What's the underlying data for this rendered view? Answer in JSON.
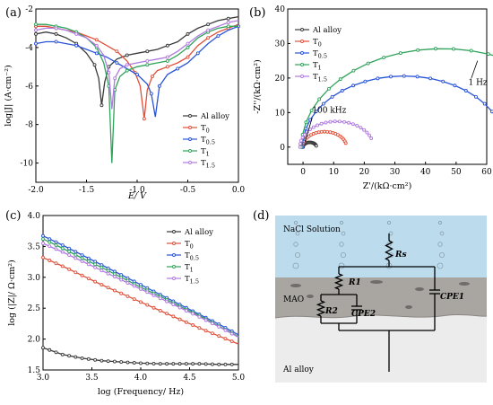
{
  "colors": {
    "Al alloy": "#3a3a3a",
    "T0": "#e0503a",
    "T0.5": "#2a54d8",
    "T1": "#2fa35a",
    "T1.5": "#b07ae0"
  },
  "legend_labels": {
    "Al alloy": "Al alloy",
    "T0": "T",
    "T0_sub": "0",
    "T0.5": "T",
    "T0.5_sub": "0.5",
    "T1": "T",
    "T1_sub": "1",
    "T1.5": "T",
    "T1.5_sub": "1.5"
  },
  "chart_data": [
    {
      "panel": "(a)",
      "type": "line",
      "xlabel": "E/ V",
      "ylabel": "log|J| (A·cm⁻²)",
      "xlim": [
        -2.0,
        0.0
      ],
      "ylim": [
        -11,
        -2
      ],
      "xticks": [
        -2.0,
        -1.5,
        -1.0,
        -0.5,
        0.0
      ],
      "xtick_labels": [
        "-2.0",
        "-1.5",
        "-1.0",
        "-0.5",
        "0.0"
      ],
      "yticks": [
        -10,
        -8,
        -6,
        -4,
        -2
      ],
      "ytick_labels": [
        "-10",
        "-8",
        "-6",
        "-4",
        "-2"
      ],
      "legend_position": "right",
      "series": [
        {
          "name": "Al alloy",
          "ecorr": -1.35,
          "jcorr": -7.0,
          "x": [
            -2.0,
            -1.9,
            -1.8,
            -1.7,
            -1.6,
            -1.5,
            -1.42,
            -1.38,
            -1.35,
            -1.32,
            -1.28,
            -1.2,
            -1.1,
            -1.0,
            -0.9,
            -0.8,
            -0.7,
            -0.6,
            -0.5,
            -0.4,
            -0.3,
            -0.2,
            -0.1,
            0.0
          ],
          "y": [
            -3.3,
            -3.2,
            -3.3,
            -3.5,
            -3.8,
            -4.3,
            -4.9,
            -5.6,
            -7.0,
            -5.8,
            -5.0,
            -4.6,
            -4.4,
            -4.3,
            -4.2,
            -4.1,
            -3.9,
            -3.7,
            -3.3,
            -3.0,
            -2.8,
            -2.6,
            -2.5,
            -2.4
          ]
        },
        {
          "name": "T0",
          "ecorr": -0.93,
          "jcorr": -7.7,
          "x": [
            -2.0,
            -1.9,
            -1.8,
            -1.7,
            -1.6,
            -1.5,
            -1.4,
            -1.3,
            -1.2,
            -1.1,
            -1.02,
            -0.97,
            -0.93,
            -0.9,
            -0.85,
            -0.8,
            -0.7,
            -0.6,
            -0.5,
            -0.4,
            -0.3,
            -0.2,
            -0.1,
            0.0
          ],
          "y": [
            -2.9,
            -2.9,
            -3.0,
            -3.1,
            -3.2,
            -3.4,
            -3.6,
            -3.9,
            -4.2,
            -4.7,
            -5.3,
            -6.0,
            -7.7,
            -6.2,
            -5.5,
            -5.2,
            -5.0,
            -4.8,
            -4.5,
            -3.9,
            -3.5,
            -3.2,
            -3.0,
            -2.8
          ]
        },
        {
          "name": "T0.5",
          "ecorr": -0.82,
          "jcorr": -7.6,
          "x": [
            -2.0,
            -1.9,
            -1.8,
            -1.7,
            -1.6,
            -1.5,
            -1.4,
            -1.3,
            -1.2,
            -1.1,
            -1.0,
            -0.9,
            -0.86,
            -0.82,
            -0.78,
            -0.7,
            -0.6,
            -0.5,
            -0.4,
            -0.3,
            -0.2,
            -0.1,
            0.0
          ],
          "y": [
            -3.8,
            -3.7,
            -3.7,
            -3.8,
            -3.9,
            -4.1,
            -4.3,
            -4.5,
            -4.8,
            -5.1,
            -5.4,
            -5.9,
            -6.4,
            -7.6,
            -6.0,
            -5.4,
            -5.1,
            -4.8,
            -4.3,
            -3.8,
            -3.4,
            -3.1,
            -2.9
          ]
        },
        {
          "name": "T1",
          "ecorr": -1.25,
          "jcorr": -10.0,
          "x": [
            -2.0,
            -1.9,
            -1.8,
            -1.7,
            -1.6,
            -1.5,
            -1.4,
            -1.33,
            -1.28,
            -1.25,
            -1.22,
            -1.17,
            -1.1,
            -1.0,
            -0.9,
            -0.8,
            -0.7,
            -0.6,
            -0.5,
            -0.4,
            -0.3,
            -0.2,
            -0.1,
            0.0
          ],
          "y": [
            -2.8,
            -2.8,
            -2.9,
            -3.0,
            -3.2,
            -3.5,
            -4.0,
            -4.8,
            -6.0,
            -10.0,
            -6.2,
            -5.5,
            -5.2,
            -5.0,
            -4.9,
            -4.8,
            -4.7,
            -4.4,
            -4.0,
            -3.5,
            -3.2,
            -3.0,
            -2.9,
            -2.9
          ]
        },
        {
          "name": "T1.5",
          "ecorr": -1.25,
          "jcorr": -7.2,
          "x": [
            -2.0,
            -1.9,
            -1.8,
            -1.7,
            -1.6,
            -1.5,
            -1.4,
            -1.33,
            -1.28,
            -1.25,
            -1.22,
            -1.17,
            -1.1,
            -1.0,
            -0.9,
            -0.8,
            -0.7,
            -0.6,
            -0.5,
            -0.4,
            -0.3,
            -0.2,
            -0.1,
            0.0
          ],
          "y": [
            -3.1,
            -3.0,
            -3.0,
            -3.1,
            -3.3,
            -3.5,
            -3.9,
            -4.4,
            -5.3,
            -7.2,
            -5.6,
            -5.1,
            -4.9,
            -4.8,
            -4.7,
            -4.6,
            -4.5,
            -4.2,
            -3.8,
            -3.4,
            -3.1,
            -2.9,
            -2.7,
            -2.6
          ]
        }
      ]
    },
    {
      "panel": "(b)",
      "type": "scatter",
      "xlabel": "Z'/(kΩ·cm²)",
      "ylabel": "-Z''/(kΩ·cm²)",
      "xlim": [
        -5,
        60
      ],
      "ylim": [
        -5,
        40
      ],
      "xticks": [
        0,
        10,
        20,
        30,
        40,
        50,
        60
      ],
      "xtick_labels": [
        "0",
        "10",
        "20",
        "30",
        "40",
        "50",
        "60"
      ],
      "yticks": [
        0,
        10,
        20,
        30,
        40
      ],
      "ytick_labels": [
        "0",
        "10",
        "20",
        "30",
        "40"
      ],
      "legend_position": "top-left",
      "annotations": [
        {
          "text": "100 kHz",
          "x": 3,
          "y": 10
        },
        {
          "text": "1 Hz",
          "x": 54,
          "y": 18
        }
      ],
      "series": [
        {
          "name": "Al alloy",
          "center_x": 2.2,
          "radius": 2.2,
          "end_angle_deg": 165
        },
        {
          "name": "T0",
          "center_x": 7.0,
          "radius": 7.2,
          "end_angle_deg": 165
        },
        {
          "name": "T0.5",
          "center_x": 33.0,
          "radius": 33.2,
          "end_angle_deg": 165
        },
        {
          "name": "T1",
          "center_x": 45.5,
          "radius": 46.0,
          "end_angle_deg": 160
        },
        {
          "name": "T1.5",
          "center_x": 11.0,
          "radius": 12.0,
          "end_angle_deg": 160
        }
      ]
    },
    {
      "panel": "(c)",
      "type": "line",
      "xlabel": "log (Frequency/ Hz)",
      "ylabel": "log (|Z|/ Ω·cm²)",
      "xlim": [
        3.0,
        5.0
      ],
      "ylim": [
        1.5,
        4.0
      ],
      "xticks": [
        3.0,
        3.5,
        4.0,
        4.5,
        5.0
      ],
      "xtick_labels": [
        "3.0",
        "3.5",
        "4.0",
        "4.5",
        "5.0"
      ],
      "yticks": [
        1.5,
        2.0,
        2.5,
        3.0,
        3.5,
        4.0
      ],
      "ytick_labels": [
        "1.5",
        "2.0",
        "2.5",
        "3.0",
        "3.5",
        "4.0"
      ],
      "legend_position": "top-right",
      "series": [
        {
          "name": "Al alloy",
          "x": [
            3.0,
            3.2,
            3.4,
            3.6,
            3.8,
            4.0,
            4.2,
            4.4,
            4.6,
            4.8,
            5.0
          ],
          "y": [
            1.86,
            1.75,
            1.69,
            1.65,
            1.63,
            1.61,
            1.6,
            1.6,
            1.6,
            1.59,
            1.59
          ]
        },
        {
          "name": "T0",
          "x": [
            3.0,
            3.2,
            3.4,
            3.6,
            3.8,
            4.0,
            4.2,
            4.4,
            4.6,
            4.8,
            5.0
          ],
          "y": [
            3.32,
            3.18,
            3.03,
            2.88,
            2.74,
            2.6,
            2.46,
            2.32,
            2.18,
            2.05,
            1.92
          ]
        },
        {
          "name": "T0.5",
          "x": [
            3.0,
            3.2,
            3.4,
            3.6,
            3.8,
            4.0,
            4.2,
            4.4,
            4.6,
            4.8,
            5.0
          ],
          "y": [
            3.67,
            3.52,
            3.36,
            3.2,
            3.04,
            2.88,
            2.72,
            2.56,
            2.4,
            2.24,
            2.07
          ]
        },
        {
          "name": "T1",
          "x": [
            3.0,
            3.2,
            3.4,
            3.6,
            3.8,
            4.0,
            4.2,
            4.4,
            4.6,
            4.8,
            5.0
          ],
          "y": [
            3.62,
            3.47,
            3.31,
            3.16,
            3.0,
            2.84,
            2.69,
            2.53,
            2.38,
            2.21,
            2.04
          ]
        },
        {
          "name": "T1.5",
          "x": [
            3.0,
            3.2,
            3.4,
            3.6,
            3.8,
            4.0,
            4.2,
            4.4,
            4.6,
            4.8,
            5.0
          ],
          "y": [
            3.55,
            3.41,
            3.26,
            3.11,
            2.96,
            2.81,
            2.66,
            2.51,
            2.36,
            2.2,
            2.03
          ]
        }
      ]
    }
  ],
  "panel_labels": {
    "a": "(a)",
    "b": "(b)",
    "c": "(c)",
    "d": "(d)"
  },
  "diagram_d": {
    "layers": {
      "solution": "NaCl Solution",
      "coating": "MAO",
      "substrate": "Al alloy"
    },
    "components": {
      "rs": "Rs",
      "r1": "R1",
      "r2": "R2",
      "cpe1": "CPE1",
      "cpe2": "CPE2"
    },
    "layer_colors": {
      "solution": "#bcdcee",
      "coating": "#a9a6a2",
      "substrate": "#ececec"
    }
  }
}
